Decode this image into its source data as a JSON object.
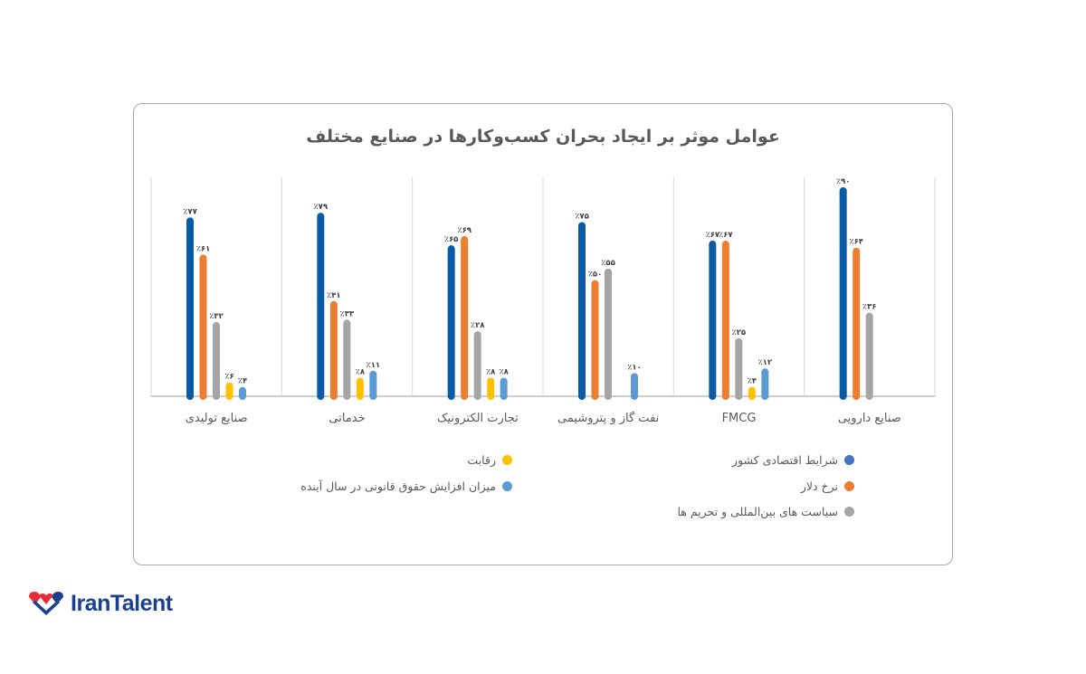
{
  "chart_data": {
    "type": "bar",
    "title": "عوامل موثر بر ایجاد بحران کسب‌وکارها در صنایع مختلف",
    "categories": [
      "صنایع دارویی",
      "FMCG",
      "نفت گاز و پتروشیمی",
      "تجارت الکترونیک",
      "خدماتی",
      "صنایع تولیدی"
    ],
    "category_order": "right-to-left",
    "series": [
      {
        "name": "شرایط اقتصادی کشور",
        "color": "#0b5aa6",
        "legend_color": "#4472c4",
        "values": [
          90,
          67,
          75,
          65,
          79,
          77
        ]
      },
      {
        "name": "نرخ دلار",
        "color": "#ed7d31",
        "legend_color": "#ed7d31",
        "values": [
          64,
          67,
          50,
          69,
          41,
          61
        ]
      },
      {
        "name": "سیاست های بین‌المللی و تحریم ها",
        "color": "#a5a5a5",
        "legend_color": "#a5a5a5",
        "values": [
          36,
          25,
          55,
          28,
          33,
          32
        ]
      },
      {
        "name": "رقابت",
        "color": "#ffc000",
        "legend_color": "#ffc000",
        "values": [
          null,
          4,
          null,
          8,
          8,
          6
        ]
      },
      {
        "name": "میزان افزایش حقوق قانونی در سال آینده",
        "color": "#5b9bd5",
        "legend_color": "#5b9bd5",
        "values": [
          null,
          12,
          10,
          8,
          11,
          4
        ]
      }
    ],
    "value_format": "percent-persian-digits",
    "ylim": [
      0,
      100
    ],
    "grid": false,
    "legend_position": "bottom"
  },
  "brand": {
    "name": "IranTalent",
    "colors": {
      "red": "#e52c3a",
      "blue": "#1d3f8f"
    }
  }
}
